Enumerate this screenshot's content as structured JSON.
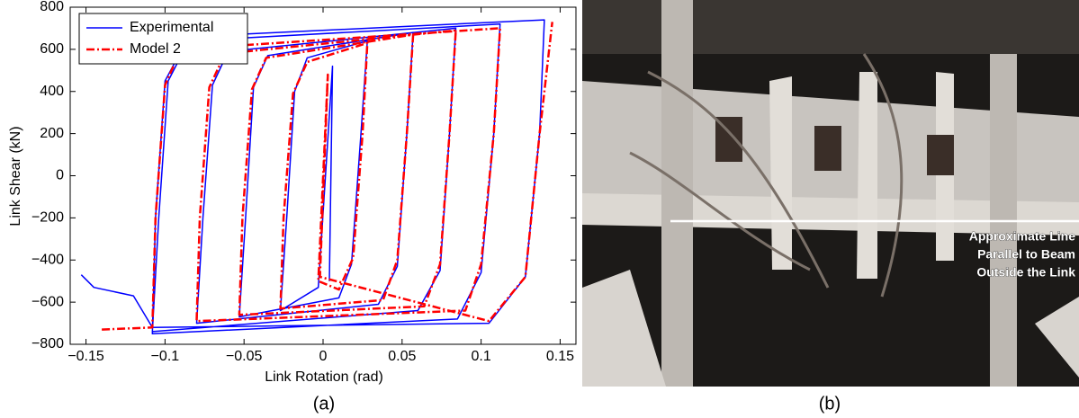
{
  "chart_data": {
    "type": "line",
    "xlabel": "Link Rotation (rad)",
    "ylabel": "Link Shear (kN)",
    "xlim": [
      -0.16,
      0.16
    ],
    "xticks": [
      {
        "value": -0.15,
        "label": "−0.15"
      },
      {
        "value": -0.1,
        "label": "−0.1"
      },
      {
        "value": -0.05,
        "label": "−0.05"
      },
      0,
      0.05,
      0.1,
      0.15
    ],
    "ylim": [
      -800,
      800
    ],
    "yticks": [
      {
        "value": -800,
        "label": "−800"
      },
      {
        "value": -600,
        "label": "−600"
      },
      {
        "value": -400,
        "label": "−400"
      },
      {
        "value": -200,
        "label": "−200"
      },
      0,
      200,
      400,
      600,
      800
    ],
    "grid": false,
    "legend": "upper left",
    "series": [
      {
        "name": "Experimental",
        "color": "#0000ff",
        "dash": false,
        "x": [
          0.004,
          0.006,
          -0.003,
          -0.027,
          -0.023,
          -0.018,
          -0.01,
          0.028,
          0.024,
          0.018,
          0.01,
          -0.053,
          -0.049,
          -0.044,
          -0.035,
          0.057,
          0.053,
          0.047,
          0.035,
          -0.08,
          -0.076,
          -0.07,
          -0.06,
          0.084,
          0.08,
          0.074,
          0.06,
          -0.108,
          -0.104,
          -0.098,
          -0.085,
          0.112,
          0.108,
          0.1,
          0.085,
          -0.108,
          -0.106,
          -0.1,
          -0.085,
          0.14,
          0.137,
          0.128,
          0.105,
          -0.108,
          -0.12,
          -0.145,
          -0.153
        ],
        "values": [
          -500,
          520,
          -530,
          -640,
          -200,
          400,
          560,
          640,
          200,
          -420,
          -580,
          -670,
          -200,
          420,
          570,
          680,
          200,
          -430,
          -610,
          -700,
          -200,
          430,
          590,
          700,
          200,
          -450,
          -640,
          -740,
          -200,
          450,
          640,
          720,
          200,
          -460,
          -680,
          -750,
          -200,
          450,
          660,
          740,
          200,
          -480,
          -700,
          -720,
          -570,
          -530,
          -470
        ]
      },
      {
        "name": "Model 2",
        "color": "#ff0000",
        "dash": true,
        "x": [
          -0.14,
          -0.108,
          -0.106,
          -0.1,
          -0.09,
          0.112,
          0.108,
          0.1,
          0.09,
          -0.08,
          -0.078,
          -0.072,
          -0.062,
          0.084,
          0.08,
          0.074,
          0.064,
          -0.053,
          -0.051,
          -0.045,
          -0.036,
          0.057,
          0.053,
          0.047,
          0.038,
          -0.027,
          -0.025,
          -0.019,
          -0.01,
          0.028,
          0.025,
          0.019,
          0.01,
          -0.003,
          0.003,
          -0.002,
          0.105,
          0.128,
          0.137,
          0.145
        ],
        "values": [
          -730,
          -720,
          -200,
          430,
          600,
          700,
          200,
          -420,
          -640,
          -690,
          -200,
          420,
          580,
          690,
          200,
          -420,
          -620,
          -660,
          -200,
          410,
          560,
          670,
          200,
          -400,
          -590,
          -630,
          -200,
          390,
          540,
          630,
          200,
          -390,
          -540,
          -500,
          480,
          -480,
          -690,
          -480,
          200,
          730
        ]
      }
    ]
  },
  "captions": [
    "(a)",
    "(b)"
  ],
  "photo": {
    "annotation": [
      "Approximate Line",
      "Parallel to Beam",
      "Outside the Link"
    ]
  }
}
